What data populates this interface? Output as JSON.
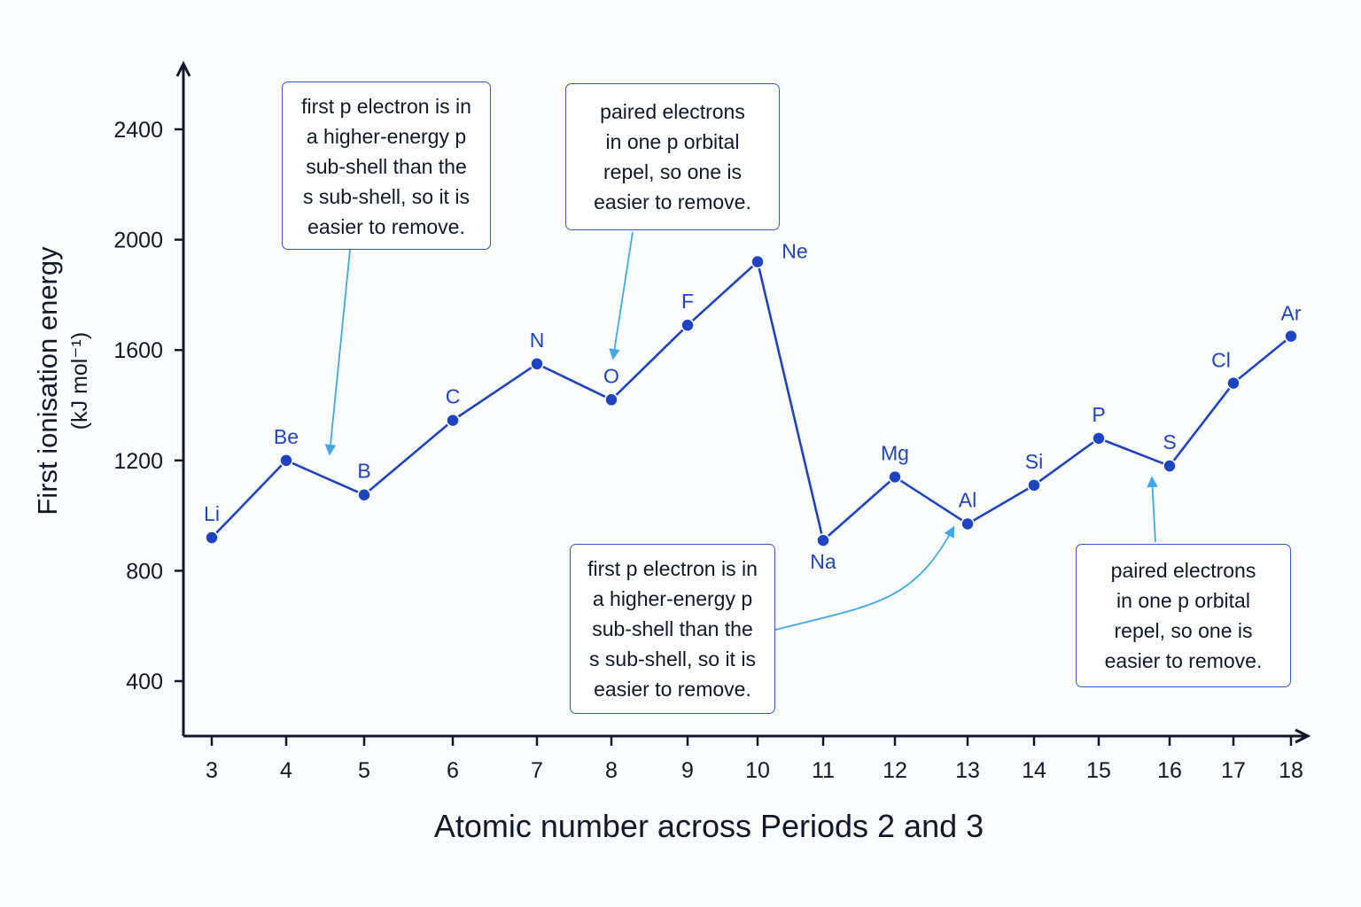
{
  "chart_data": {
    "type": "line",
    "title": "",
    "xlabel": "Atomic number across Periods 2 and 3",
    "ylabel_lines": [
      "First ionisation energy",
      "(kJ mol⁻¹)"
    ],
    "x_ticks": [
      3,
      4,
      5,
      6,
      7,
      8,
      9,
      10,
      11,
      12,
      13,
      14,
      15,
      16,
      17,
      18
    ],
    "y_ticks": [
      400,
      800,
      1200,
      1600,
      2000,
      2400
    ],
    "grid": false,
    "colors": {
      "series": "#1e44c4",
      "axis": "#10182b",
      "arrow": "#3fa9ee",
      "callout_border": "#2f5bd3"
    },
    "series": [
      {
        "points": [
          {
            "label": "Li",
            "x": 3,
            "y": 920
          },
          {
            "label": "Be",
            "x": 4,
            "y": 1200
          },
          {
            "label": "B",
            "x": 5,
            "y": 1075
          },
          {
            "label": "C",
            "x": 6,
            "y": 1345
          },
          {
            "label": "N",
            "x": 7,
            "y": 1550
          },
          {
            "label": "O",
            "x": 8,
            "y": 1420
          },
          {
            "label": "F",
            "x": 9,
            "y": 1690
          },
          {
            "label": "Ne",
            "x": 10,
            "y": 1920
          },
          {
            "label": "Na",
            "x": 11,
            "y": 910
          },
          {
            "label": "Mg",
            "x": 12,
            "y": 1140
          },
          {
            "label": "Al",
            "x": 13,
            "y": 970
          },
          {
            "label": "Si",
            "x": 14,
            "y": 1110
          },
          {
            "label": "P",
            "x": 15,
            "y": 1280
          },
          {
            "label": "S",
            "x": 16,
            "y": 1180
          },
          {
            "label": "Cl",
            "x": 17,
            "y": 1480
          },
          {
            "label": "Ar",
            "x": 18,
            "y": 1650
          }
        ]
      }
    ],
    "annotations": [
      {
        "text": "first p electron is in\na higher-energy p\nsub-shell than the\ns sub-shell, so it is\neasier to remove.",
        "points_to": "B"
      },
      {
        "text": "paired electrons\nin one p orbital\nrepel, so one is\neasier to remove.",
        "points_to": "O"
      },
      {
        "text": "first p electron is in\na higher-energy p\nsub-shell than the\ns sub-shell, so it is\neasier to remove.",
        "points_to": "Al"
      },
      {
        "text": "paired electrons\nin one p orbital\nrepel, so one is\neasier to remove.",
        "points_to": "S"
      }
    ]
  }
}
